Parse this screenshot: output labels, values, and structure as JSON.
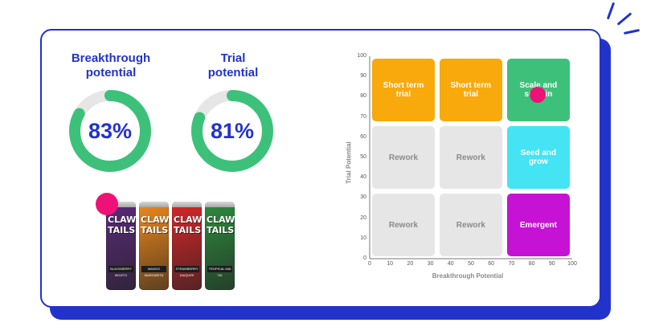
{
  "gauges": [
    {
      "title_line1": "Breakthrough",
      "title_line2": "potential",
      "value": 83,
      "label": "83%"
    },
    {
      "title_line1": "Trial",
      "title_line2": "potential",
      "value": 81,
      "label": "81%"
    }
  ],
  "colors": {
    "brand": "#2233cc",
    "gauge_fill": "#3dc17a",
    "gauge_track": "#e6e6e6",
    "marker": "#ee1177"
  },
  "product": {
    "cans": [
      {
        "brand": "CLAW TAILS",
        "flavor": "BLACKBERRY MOJITO",
        "color": "#5a2a7a"
      },
      {
        "brand": "CLAW TAILS",
        "flavor": "MANGO MARGARITA",
        "color": "#f08a1c"
      },
      {
        "brand": "CLAW TAILS",
        "flavor": "STRAWBERRY DAIQUIRI",
        "color": "#d8262a"
      },
      {
        "brand": "CLAW TAILS",
        "flavor": "TROPICAL MAI TAI",
        "color": "#2e8b3e"
      }
    ]
  },
  "chart_data": {
    "type": "scatter",
    "xlabel": "Breakthrough Potential",
    "ylabel": "Trial Potential",
    "xlim": [
      0,
      100
    ],
    "ylim": [
      0,
      100
    ],
    "xticks": [
      "0",
      "10",
      "20",
      "30",
      "40",
      "50",
      "60",
      "70",
      "80",
      "90",
      "100"
    ],
    "yticks": [
      "0",
      "10",
      "20",
      "30",
      "40",
      "50",
      "60",
      "70",
      "80",
      "90",
      "100"
    ],
    "point": {
      "x": 83,
      "y": 81
    },
    "zones": [
      {
        "label": "Short term trial",
        "color": "#f8a90c"
      },
      {
        "label": "Short term trial",
        "color": "#f8a90c"
      },
      {
        "label": "Scale and sustain",
        "color": "#3dc17a"
      },
      {
        "label": "Rework",
        "color": "#e6e6e6"
      },
      {
        "label": "Rework",
        "color": "#e6e6e6"
      },
      {
        "label": "Seed and grow",
        "color": "#44e4f4"
      },
      {
        "label": "Rework",
        "color": "#e6e6e6"
      },
      {
        "label": "Rework",
        "color": "#e6e6e6"
      },
      {
        "label": "Emergent",
        "color": "#c612d4"
      }
    ]
  }
}
